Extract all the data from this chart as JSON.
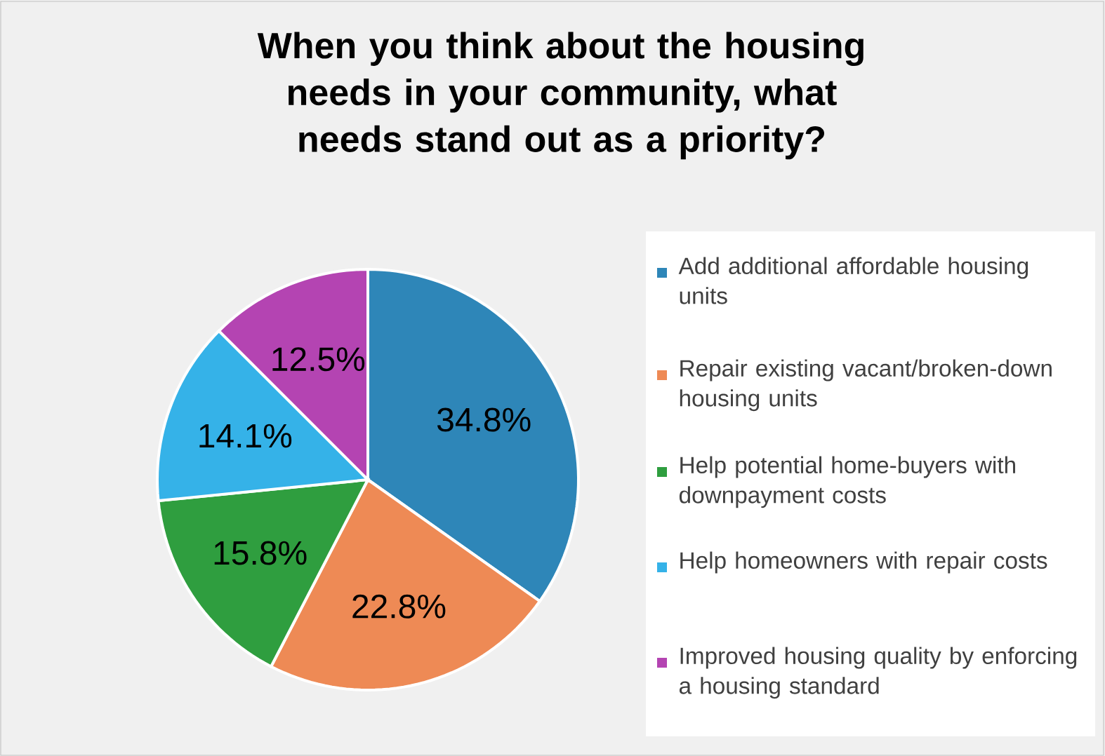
{
  "chart_data": {
    "type": "pie",
    "title": "When you think about the housing needs in your community, what needs stand out as a priority?",
    "categories": [
      "Add additional affordable housing units",
      "Repair existing vacant/broken-down housing units",
      "Help potential home-buyers with downpayment costs",
      "Help homeowners with repair costs",
      "Improved housing quality by enforcing a housing standard"
    ],
    "values": [
      34.8,
      22.8,
      15.8,
      14.1,
      12.5
    ],
    "value_labels": [
      "34.8%",
      "22.8%",
      "15.8%",
      "14.1%",
      "12.5%"
    ],
    "colors": [
      "#2e86b8",
      "#ee8a55",
      "#2f9e3f",
      "#35b2e8",
      "#b444b2"
    ],
    "legend": "right"
  }
}
